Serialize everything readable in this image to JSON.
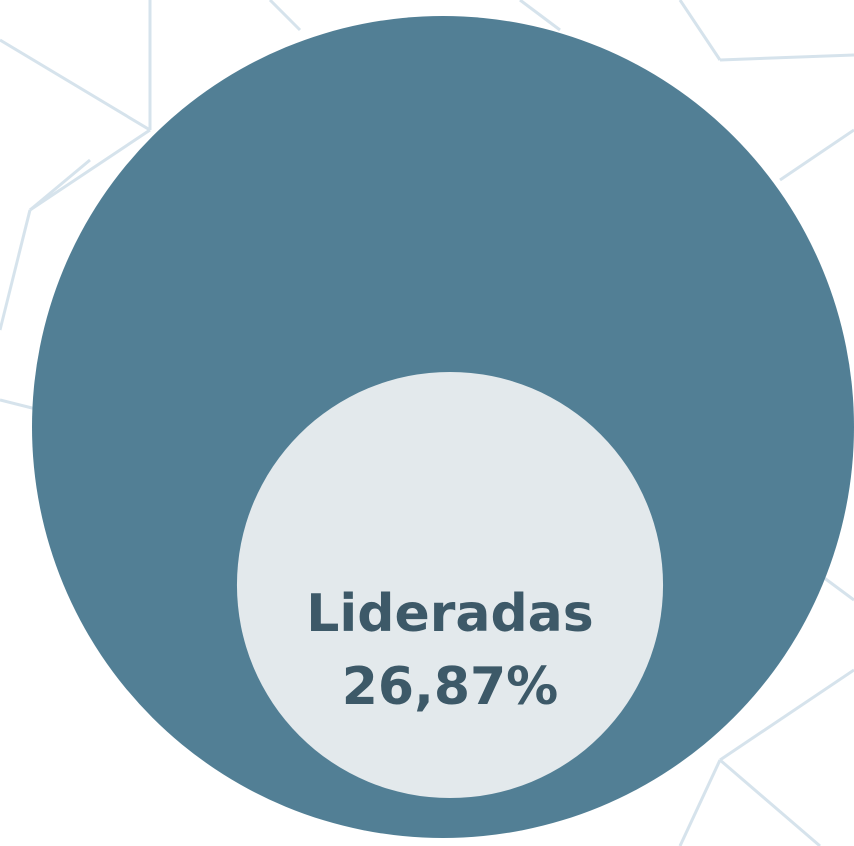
{
  "chart_data": {
    "type": "nested-circle",
    "categories": [
      "Lideradas"
    ],
    "values": [
      26.87
    ],
    "value_labels": [
      "26,87%"
    ],
    "color": "#e3e9ec"
  }
}
